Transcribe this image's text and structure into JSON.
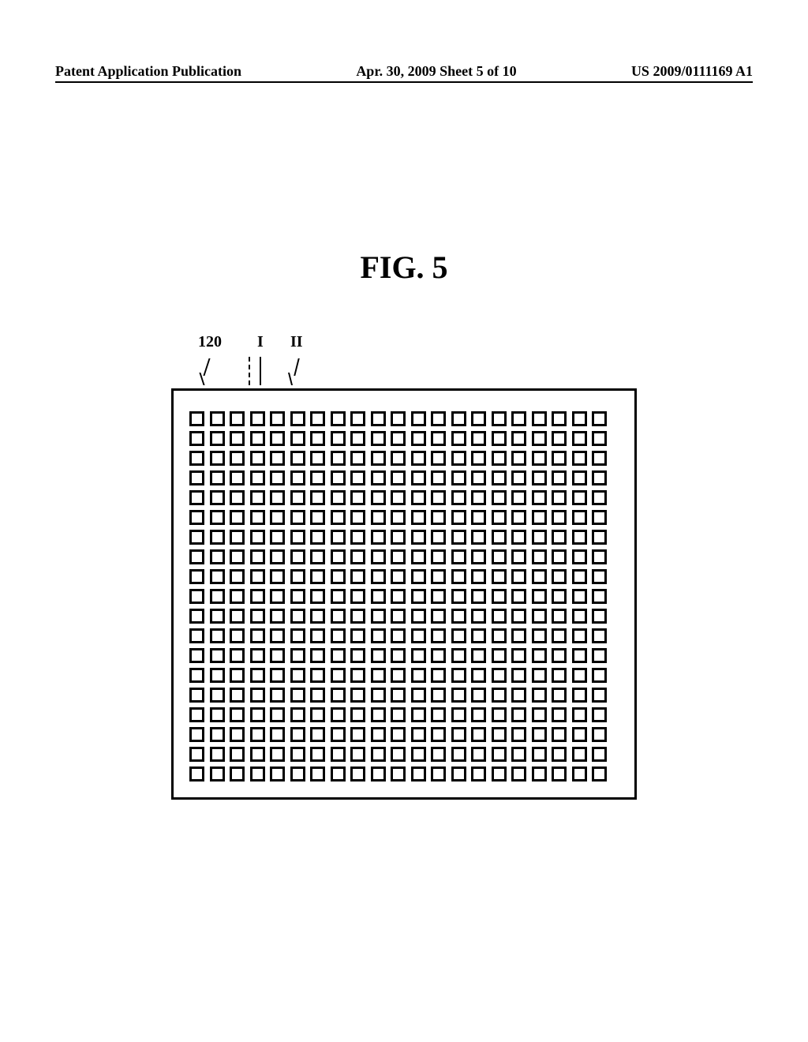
{
  "header": {
    "left": "Patent Application Publication",
    "mid": "Apr. 30, 2009  Sheet 5 of 10",
    "right": "US 2009/0111169 A1"
  },
  "figure": {
    "title": "FIG. 5",
    "labels": {
      "ref120": "120",
      "refI": "I",
      "refII": "II"
    },
    "grid": {
      "rows": 19,
      "cols": 21
    }
  }
}
